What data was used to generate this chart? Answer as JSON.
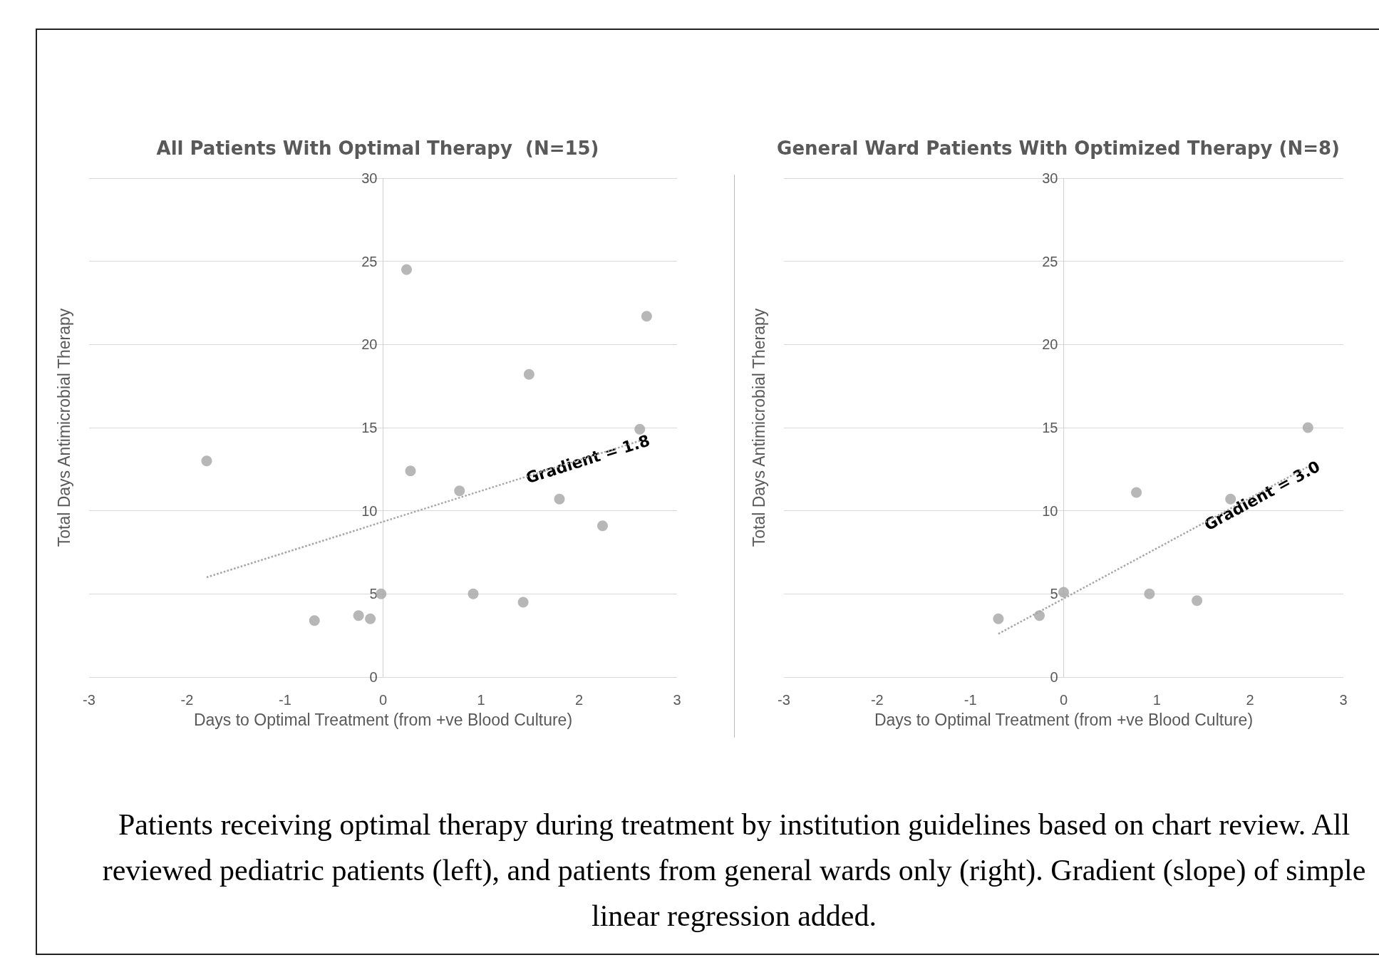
{
  "chart_data": [
    {
      "type": "scatter",
      "title": "All Patients With Optimal Therapy  (N=15)",
      "xlabel": "Days to Optimal Treatment (from +ve Blood Culture)",
      "ylabel": "Total Days Antimicrobial Therapy",
      "xlim": [
        -3,
        3
      ],
      "xticks": [
        -3,
        -2,
        -1,
        0,
        1,
        2,
        3
      ],
      "ylim": [
        0,
        30
      ],
      "yticks": [
        0,
        5,
        10,
        15,
        20,
        25,
        30
      ],
      "grid": "y",
      "marker": "circle",
      "series": [
        {
          "type": "scatter",
          "color": "#a5a5a5",
          "x": [
            -1.8,
            -0.7,
            -0.25,
            -0.13,
            -0.02,
            0.24,
            0.28,
            0.78,
            0.92,
            1.43,
            1.49,
            1.8,
            2.24,
            2.62,
            2.69
          ],
          "values": [
            13,
            3.4,
            3.7,
            3.5,
            5,
            24.5,
            12.4,
            11.2,
            5,
            4.5,
            18.2,
            10.7,
            9.1,
            14.9,
            21.7
          ]
        },
        {
          "type": "line",
          "color": "#a5a5a5",
          "line_style": "dotted",
          "marker": "none",
          "x": [
            -1.8,
            2.62
          ],
          "values": [
            6,
            14.2
          ]
        }
      ],
      "annotations": [
        {
          "text": "Gradient = 1.8",
          "x": 2.62,
          "y": 14.2
        },
        "Patients receiving optimal therapy during treatment by institution guidelines based on chart review. All reviewed pediatric patients (left), and patients from general wards only (right). Gradient (slope) of simple linear regression added."
      ]
    },
    {
      "type": "scatter",
      "title": "General Ward Patients With Optimized Therapy (N=8)",
      "xlabel": "Days to Optimal Treatment (from +ve Blood Culture)",
      "ylabel": "Total Days Antimicrobial Therapy",
      "xlim": [
        -3,
        3
      ],
      "xticks": [
        -3,
        -2,
        -1,
        0,
        1,
        2,
        3
      ],
      "ylim": [
        0,
        30
      ],
      "yticks": [
        0,
        5,
        10,
        15,
        20,
        25,
        30
      ],
      "grid": "y",
      "marker": "circle",
      "series": [
        {
          "type": "scatter",
          "color": "#a5a5a5",
          "x": [
            -0.7,
            -0.26,
            0,
            0.78,
            0.92,
            1.43,
            1.79,
            2.62
          ],
          "values": [
            3.5,
            3.7,
            5.1,
            11.1,
            5,
            4.6,
            10.7,
            15
          ]
        },
        {
          "type": "line",
          "color": "#a5a5a5",
          "line_style": "dotted",
          "marker": "none",
          "x": [
            -0.7,
            2.62
          ],
          "values": [
            2.6,
            12.65
          ]
        }
      ],
      "annotations": [
        {
          "text": "Gradient = 3.0",
          "x": 2.62,
          "y": 12.65
        }
      ]
    }
  ]
}
